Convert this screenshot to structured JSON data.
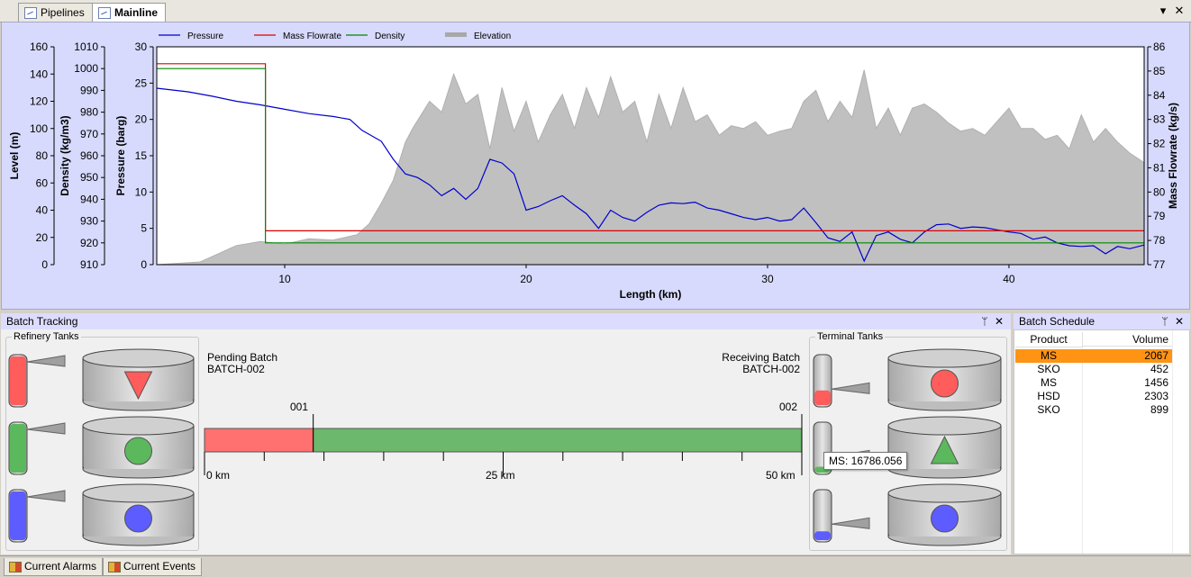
{
  "tabs": [
    {
      "label": "Pipelines",
      "active": false
    },
    {
      "label": "Mainline",
      "active": true
    }
  ],
  "strip_buttons": {
    "dropdown": "▾",
    "close": "✕"
  },
  "chart_data": {
    "type": "line",
    "xlabel": "Length (km)",
    "xlim": [
      4.7,
      45.6
    ],
    "xticks": [
      10,
      20,
      30,
      40
    ],
    "axes": {
      "level": {
        "label": "Level (m)",
        "lim": [
          0,
          160
        ],
        "ticks": [
          0,
          20,
          40,
          60,
          80,
          100,
          120,
          140,
          160
        ]
      },
      "density": {
        "label": "Density (kg/m3)",
        "lim": [
          910,
          1010
        ],
        "ticks": [
          910,
          920,
          930,
          940,
          950,
          960,
          970,
          980,
          990,
          1000,
          1010
        ]
      },
      "pressure": {
        "label": "Pressure (barg)",
        "lim": [
          0,
          30
        ],
        "ticks": [
          0,
          5,
          10,
          15,
          20,
          25,
          30
        ]
      },
      "massflow": {
        "label": "Mass Flowrate (kg/s)",
        "lim": [
          77,
          86
        ],
        "ticks": [
          77,
          78,
          79,
          80,
          81,
          82,
          83,
          84,
          85,
          86
        ]
      }
    },
    "legend": [
      "Pressure",
      "Mass Flowrate",
      "Density",
      "Elevation"
    ],
    "legend_placement": "top",
    "grid": false,
    "colors": {
      "pressure": "#0000cc",
      "massflow": "#dd0000",
      "density": "#008800",
      "elevation": "#c0c0c0"
    },
    "series": [
      {
        "name": "Pressure",
        "axis": "pressure",
        "x": [
          4.7,
          6,
          7,
          8,
          9,
          10,
          11,
          12,
          12.7,
          13.2,
          14,
          14.5,
          15,
          15.5,
          16,
          16.5,
          17,
          17.5,
          18,
          18.5,
          19,
          19.5,
          20,
          20.5,
          21,
          21.5,
          22,
          22.5,
          23,
          23.5,
          24,
          24.5,
          25,
          25.5,
          26,
          26.5,
          27,
          27.5,
          28,
          28.5,
          29,
          29.5,
          30,
          30.5,
          31,
          31.5,
          32,
          32.5,
          33,
          33.5,
          34,
          34.5,
          35,
          35.5,
          36,
          36.5,
          37,
          37.5,
          38,
          38.5,
          39,
          39.5,
          40,
          40.5,
          41,
          41.5,
          42,
          42.5,
          43,
          43.5,
          44,
          44.5,
          45,
          45.6
        ],
        "y": [
          24.3,
          23.8,
          23.2,
          22.5,
          22,
          21.4,
          20.8,
          20.4,
          20,
          18.5,
          17,
          14.5,
          12.5,
          12,
          11,
          9.5,
          10.5,
          9,
          10.5,
          14.5,
          14,
          12.5,
          7.5,
          8,
          8.8,
          9.5,
          8.2,
          7,
          5,
          7.5,
          6.5,
          6,
          7.2,
          8.2,
          8.5,
          8.4,
          8.6,
          7.8,
          7.5,
          7,
          6.5,
          6.2,
          6.5,
          6,
          6.2,
          7.8,
          5.8,
          3.7,
          3.2,
          4.5,
          0.5,
          4,
          4.5,
          3.5,
          3,
          4.5,
          5.5,
          5.6,
          5,
          5.2,
          5.1,
          4.8,
          4.5,
          4.3,
          3.5,
          3.8,
          3,
          2.6,
          2.5,
          2.6,
          1.5,
          2.5,
          2.2,
          2.7
        ]
      },
      {
        "name": "Mass Flowrate",
        "axis": "massflow",
        "x": [
          4.7,
          9.2,
          9.2,
          45.6
        ],
        "y": [
          85.3,
          85.3,
          78.4,
          78.4
        ]
      },
      {
        "name": "Density",
        "axis": "density",
        "x": [
          4.7,
          9.2,
          9.2,
          45.6
        ],
        "y": [
          1000,
          1000,
          920,
          920
        ]
      },
      {
        "name": "Elevation",
        "axis": "level",
        "x": [
          4.7,
          6.5,
          7,
          8,
          9,
          10,
          11,
          12,
          12.5,
          13,
          13.5,
          14,
          14.5,
          15,
          15.3,
          16,
          16.5,
          17,
          17.5,
          18,
          18.5,
          19,
          19.5,
          20,
          20.5,
          21,
          21.5,
          22,
          22.5,
          23,
          23.5,
          24,
          24.5,
          25,
          25.5,
          26,
          26.5,
          27,
          27.5,
          28,
          28.5,
          29,
          29.5,
          30,
          30.5,
          31,
          31.5,
          32,
          32.5,
          33,
          33.5,
          34,
          34.5,
          35,
          35.5,
          36,
          36.5,
          37,
          37.5,
          38,
          38.5,
          39,
          39.5,
          40,
          40.5,
          41,
          41.5,
          42,
          42.5,
          43,
          43.5,
          44,
          44.5,
          45,
          45.6
        ],
        "y": [
          0,
          2,
          6,
          14,
          17,
          15,
          19,
          18,
          20,
          22,
          30,
          45,
          62,
          90,
          100,
          120,
          112,
          140,
          118,
          125,
          85,
          130,
          98,
          120,
          90,
          110,
          125,
          100,
          130,
          108,
          138,
          112,
          120,
          90,
          125,
          100,
          130,
          105,
          110,
          95,
          102,
          100,
          105,
          95,
          98,
          100,
          120,
          128,
          105,
          120,
          108,
          143,
          100,
          115,
          95,
          115,
          118,
          112,
          104,
          98,
          100,
          95,
          105,
          115,
          100,
          100,
          92,
          95,
          85,
          110,
          90,
          100,
          90,
          82,
          75
        ]
      }
    ],
    "tick_labels_x": [
      "10",
      "20",
      "30",
      "40"
    ]
  },
  "batch_tracking": {
    "title": "Batch Tracking",
    "refinery_label": "Refinery Tanks",
    "terminal_label": "Terminal Tanks",
    "pending_label": "Pending Batch",
    "pending_value": "BATCH-002",
    "receiving_label": "Receiving Batch",
    "receiving_value": "BATCH-002",
    "batch_marker_left": "001",
    "batch_marker_right": "002",
    "scale_left": "0 km",
    "scale_mid": "25 km",
    "scale_right": "50 km",
    "pipeline_length_km": 50,
    "batch_interface_km": 9.1,
    "batch_colors": [
      "#ff7070",
      "#6cb86c"
    ],
    "tooltip": "MS: 16786.056",
    "refinery_tanks": [
      {
        "color": "#ff5c5c",
        "small_level": 1.0,
        "symbol": "triangle-down"
      },
      {
        "color": "#5cb85c",
        "small_level": 1.0,
        "symbol": "circle"
      },
      {
        "color": "#5c5cff",
        "small_level": 1.0,
        "symbol": "circle"
      }
    ],
    "terminal_tanks": [
      {
        "color": "#ff5c5c",
        "small_level": 0.3,
        "symbol": "circle"
      },
      {
        "color": "#5cb85c",
        "small_level": 0.12,
        "symbol": "triangle-up"
      },
      {
        "color": "#5c5cff",
        "small_level": 0.18,
        "symbol": "circle"
      }
    ]
  },
  "batch_schedule": {
    "title": "Batch Schedule",
    "columns": [
      "Product",
      "Volume"
    ],
    "rows": [
      {
        "product": "MS",
        "volume": "2067",
        "selected": true
      },
      {
        "product": "SKO",
        "volume": "452",
        "selected": false
      },
      {
        "product": "MS",
        "volume": "1456",
        "selected": false
      },
      {
        "product": "HSD",
        "volume": "2303",
        "selected": false
      },
      {
        "product": "SKO",
        "volume": "899",
        "selected": false
      }
    ],
    "selected_color": "#ff9314"
  },
  "bottom_tabs": [
    "Current Alarms",
    "Current Events"
  ],
  "pane_buttons": {
    "pin": "ᛘ",
    "close": "✕"
  }
}
